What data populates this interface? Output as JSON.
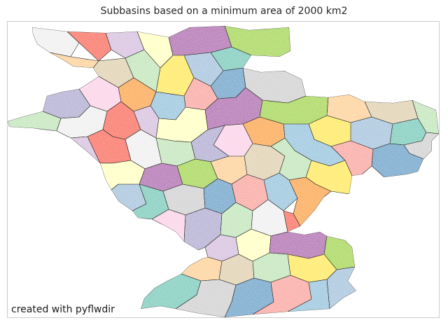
{
  "title": "Subbasins based on a minimum area of 2000 km2",
  "credit": "created with pyflwdir",
  "map": {
    "basin_colors": [
      "#fbb4ae",
      "#b3cde3",
      "#ccebc5",
      "#decbe4",
      "#fed9a6",
      "#ffffcc",
      "#e5d8bd",
      "#fddaec",
      "#f2f2f2",
      "#8dd3c7",
      "#bebada",
      "#fb8072",
      "#80b1d3",
      "#fdb462",
      "#b3de69",
      "#d9d9d9",
      "#bc80bd",
      "#ccebc5",
      "#ffed6f",
      "#a6cee3"
    ]
  }
}
